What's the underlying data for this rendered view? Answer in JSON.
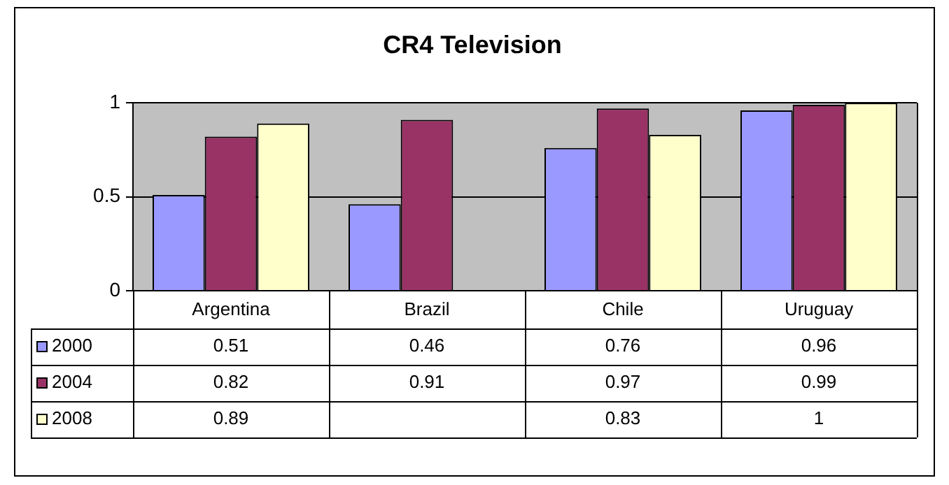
{
  "chart_data": {
    "type": "bar",
    "title": "CR4 Television",
    "categories": [
      "Argentina",
      "Brazil",
      "Chile",
      "Uruguay"
    ],
    "series": [
      {
        "name": "2000",
        "color": "#9999ff",
        "values": [
          0.51,
          0.46,
          0.76,
          0.96
        ]
      },
      {
        "name": "2004",
        "color": "#993366",
        "values": [
          0.82,
          0.91,
          0.97,
          0.99
        ]
      },
      {
        "name": "2008",
        "color": "#ffffcc",
        "values": [
          0.89,
          null,
          0.83,
          1
        ]
      }
    ],
    "ylim": [
      0,
      1
    ],
    "yticks": [
      0,
      0.5,
      1
    ],
    "grid": "y",
    "legend": "bottom",
    "data_labels": true
  }
}
